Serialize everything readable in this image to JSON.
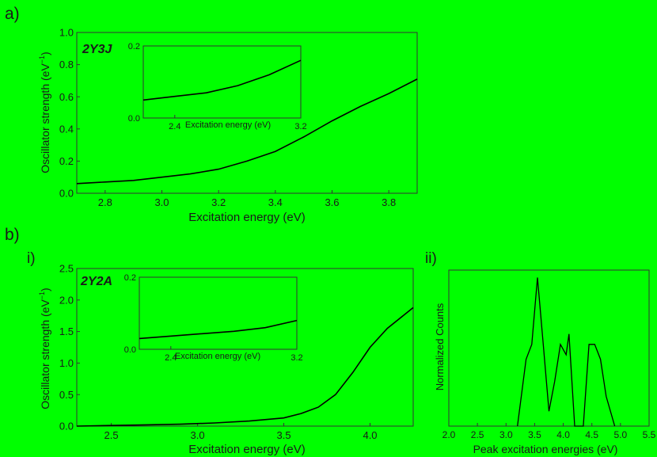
{
  "chart_data": [
    {
      "id": "a",
      "panel_label": "a)",
      "type": "line",
      "annotation": "2Y3J",
      "xlabel": "Excitation energy (eV)",
      "ylabel_main": "Oscillator strength (eV",
      "ylabel_sup": "−1",
      "ylabel_close": ")",
      "xlim": [
        2.7,
        3.9
      ],
      "ylim": [
        0.0,
        1.0
      ],
      "xticks": [
        "2.8",
        "3.0",
        "3.2",
        "3.4",
        "3.6",
        "3.8"
      ],
      "yticks": [
        "0.0",
        "0.2",
        "0.4",
        "0.6",
        "0.8",
        "1.0"
      ],
      "series": [
        {
          "x": [
            2.7,
            2.8,
            2.9,
            3.0,
            3.1,
            3.2,
            3.3,
            3.4,
            3.5,
            3.6,
            3.7,
            3.8,
            3.9
          ],
          "y": [
            0.06,
            0.07,
            0.08,
            0.1,
            0.12,
            0.15,
            0.2,
            0.26,
            0.35,
            0.45,
            0.54,
            0.62,
            0.71
          ]
        }
      ],
      "inset": {
        "xlabel": "Excitation energy (eV)",
        "xlim": [
          2.2,
          3.2
        ],
        "ylim": [
          0.0,
          0.2
        ],
        "xticks": [
          "2.4",
          "3.2"
        ],
        "yticks": [
          "0.0",
          "0.2"
        ],
        "series": [
          {
            "x": [
              2.2,
              2.4,
              2.6,
              2.8,
              3.0,
              3.2
            ],
            "y": [
              0.05,
              0.06,
              0.07,
              0.09,
              0.12,
              0.16
            ]
          }
        ]
      }
    },
    {
      "id": "bi",
      "panel_label": "b)",
      "sub_label": "i)",
      "type": "line",
      "annotation": "2Y2A",
      "xlabel": "Excitation energy (eV)",
      "ylabel_main": "Oscillator strength (eV",
      "ylabel_sup": "−1",
      "ylabel_close": ")",
      "xlim": [
        2.3,
        4.25
      ],
      "ylim": [
        0.0,
        2.5
      ],
      "xticks": [
        "2.5",
        "3.0",
        "3.5",
        "4.0"
      ],
      "yticks": [
        "0.0",
        "0.5",
        "1.0",
        "1.5",
        "2.0",
        "2.5"
      ],
      "series": [
        {
          "x": [
            2.3,
            2.5,
            2.7,
            2.9,
            3.1,
            3.3,
            3.5,
            3.6,
            3.7,
            3.8,
            3.9,
            4.0,
            4.1,
            4.25
          ],
          "y": [
            0.0,
            0.01,
            0.02,
            0.03,
            0.05,
            0.08,
            0.13,
            0.2,
            0.3,
            0.5,
            0.85,
            1.25,
            1.55,
            1.88
          ]
        }
      ],
      "inset": {
        "xlabel": "Excitation energy (eV)",
        "xlim": [
          2.2,
          3.2
        ],
        "ylim": [
          0.0,
          0.2
        ],
        "xticks": [
          "2.4",
          "3.2"
        ],
        "yticks": [
          "0.0",
          "0.2"
        ],
        "series": [
          {
            "x": [
              2.2,
              2.5,
              2.8,
              3.0,
              3.2
            ],
            "y": [
              0.03,
              0.04,
              0.05,
              0.06,
              0.08
            ]
          }
        ]
      }
    },
    {
      "id": "bii",
      "sub_label": "ii)",
      "type": "line",
      "xlabel": "Peak excitation energies (eV)",
      "ylabel": "Normalized Counts",
      "xlim": [
        2.0,
        5.5
      ],
      "ylim": [
        0.0,
        1.05
      ],
      "xticks": [
        "2.0",
        "2.5",
        "3.0",
        "3.5",
        "4.0",
        "4.5",
        "5.0",
        "5.5"
      ],
      "series": [
        {
          "x": [
            3.2,
            3.35,
            3.45,
            3.55,
            3.65,
            3.75,
            3.85,
            3.95,
            4.05,
            4.1,
            4.2,
            4.35,
            4.45,
            4.55,
            4.65,
            4.75,
            4.9
          ],
          "y": [
            0.0,
            0.45,
            0.55,
            1.0,
            0.55,
            0.1,
            0.3,
            0.55,
            0.48,
            0.62,
            0.0,
            0.0,
            0.55,
            0.55,
            0.45,
            0.2,
            0.0
          ]
        }
      ]
    }
  ]
}
